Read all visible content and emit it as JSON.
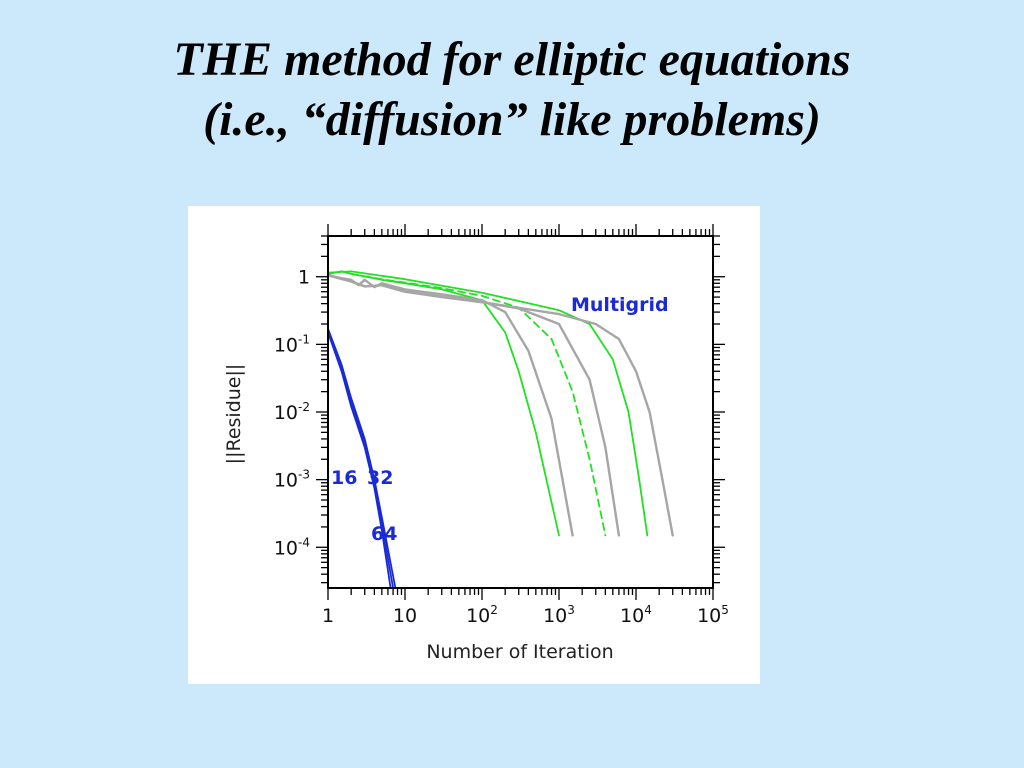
{
  "slide": {
    "title_line1": "THE method for elliptic equations",
    "title_line2": "(i.e., “diffusion” like problems)"
  },
  "chart_data": {
    "type": "line",
    "title": "",
    "xlabel": "Number  of Iteration",
    "ylabel": "||Residue||",
    "x_scale": "log",
    "y_scale": "log",
    "xlim": [
      1,
      100000
    ],
    "ylim": [
      2.5e-05,
      4
    ],
    "x_ticks": [
      {
        "value": 1,
        "base": "1",
        "exp": ""
      },
      {
        "value": 10,
        "base": "10",
        "exp": ""
      },
      {
        "value": 100,
        "base": "10",
        "exp": "2"
      },
      {
        "value": 1000,
        "base": "10",
        "exp": "3"
      },
      {
        "value": 10000,
        "base": "10",
        "exp": "4"
      },
      {
        "value": 100000,
        "base": "10",
        "exp": "5"
      }
    ],
    "y_ticks": [
      {
        "value": 1,
        "base": "1",
        "exp": ""
      },
      {
        "value": 0.1,
        "base": "10",
        "exp": "-1"
      },
      {
        "value": 0.01,
        "base": "10",
        "exp": "-2"
      },
      {
        "value": 0.001,
        "base": "10",
        "exp": "-3"
      },
      {
        "value": 0.0001,
        "base": "10",
        "exp": "-4"
      }
    ],
    "annotations": {
      "multigrid": "Multigrid",
      "grid16": "16",
      "grid32": "32",
      "grid64": "64"
    },
    "colors": {
      "multigrid": "#1a2bd6",
      "green": "#22e022",
      "gray": "#a6a6a6"
    },
    "series": [
      {
        "color": "#1a2bd6",
        "dash": false,
        "x": [
          1,
          1.5,
          2,
          3,
          4,
          5,
          6.5
        ],
        "y": [
          0.15,
          0.04,
          0.012,
          0.003,
          0.00075,
          0.00018,
          2e-05
        ]
      },
      {
        "color": "#1a2bd6",
        "dash": false,
        "x": [
          1,
          1.5,
          2,
          3,
          4,
          5,
          7
        ],
        "y": [
          0.16,
          0.045,
          0.014,
          0.0035,
          0.0009,
          0.00022,
          2e-05
        ]
      },
      {
        "color": "#1a2bd6",
        "dash": false,
        "x": [
          1,
          1.5,
          2,
          3,
          4,
          5,
          7.5
        ],
        "y": [
          0.17,
          0.05,
          0.016,
          0.004,
          0.001,
          0.00028,
          2e-05
        ]
      },
      {
        "color": "#22e022",
        "dash": false,
        "x": [
          1,
          1.5,
          2,
          5,
          10,
          30,
          100,
          200,
          300,
          500,
          700,
          1000
        ],
        "y": [
          1.1,
          1.2,
          1.1,
          0.9,
          0.8,
          0.65,
          0.45,
          0.15,
          0.04,
          0.005,
          0.0009,
          0.00015
        ]
      },
      {
        "color": "#22e022",
        "dash": true,
        "x": [
          1,
          1.5,
          2,
          5,
          10,
          30,
          100,
          300,
          800,
          1500,
          2500,
          4000
        ],
        "y": [
          1.1,
          1.2,
          1.1,
          0.92,
          0.82,
          0.68,
          0.52,
          0.35,
          0.12,
          0.02,
          0.002,
          0.00015
        ]
      },
      {
        "color": "#22e022",
        "dash": false,
        "x": [
          1,
          2,
          10,
          100,
          1000,
          2500,
          5000,
          8000,
          11000,
          14000
        ],
        "y": [
          1.15,
          1.2,
          0.92,
          0.58,
          0.32,
          0.2,
          0.06,
          0.01,
          0.001,
          0.00015
        ]
      },
      {
        "color": "#a6a6a6",
        "dash": false,
        "x": [
          1,
          1.5,
          2,
          2.5,
          3,
          4,
          5,
          10,
          30,
          100,
          200,
          400,
          800,
          1500
        ],
        "y": [
          1.05,
          0.95,
          0.9,
          0.75,
          0.9,
          0.7,
          0.8,
          0.65,
          0.55,
          0.45,
          0.3,
          0.08,
          0.008,
          0.00015
        ]
      },
      {
        "color": "#a6a6a6",
        "dash": false,
        "x": [
          1,
          2,
          3,
          5,
          10,
          30,
          100,
          300,
          1000,
          2500,
          4000,
          6000
        ],
        "y": [
          1.05,
          0.85,
          0.72,
          0.75,
          0.6,
          0.5,
          0.42,
          0.34,
          0.2,
          0.03,
          0.003,
          0.00015
        ]
      },
      {
        "color": "#a6a6a6",
        "dash": false,
        "x": [
          1,
          2,
          3,
          5,
          10,
          100,
          1000,
          3000,
          6000,
          10000,
          15000,
          22000,
          30000
        ],
        "y": [
          1.05,
          0.85,
          0.72,
          0.75,
          0.6,
          0.42,
          0.28,
          0.2,
          0.12,
          0.04,
          0.01,
          0.001,
          0.00015
        ]
      }
    ]
  }
}
